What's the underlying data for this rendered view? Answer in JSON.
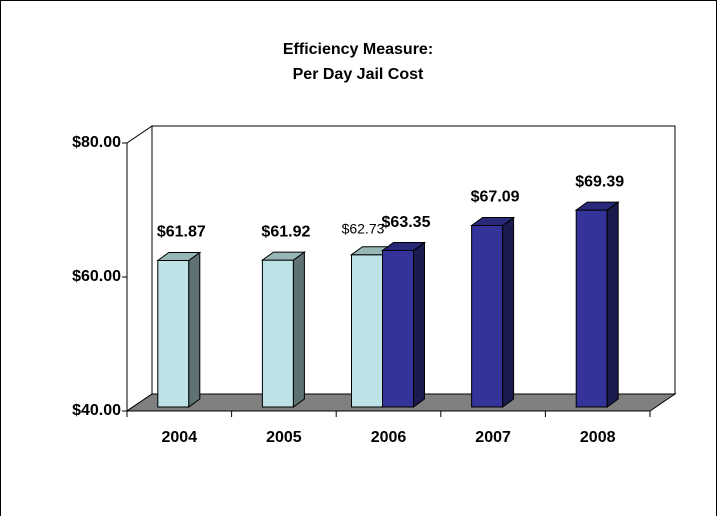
{
  "chart_data": {
    "type": "bar3d",
    "title": "Efficiency Measure:",
    "subtitle": "Per Day Jail Cost",
    "categories": [
      "2004",
      "2005",
      "2006",
      "2007",
      "2008"
    ],
    "series": [
      {
        "color": "#bde3e6",
        "values": [
          61.87,
          61.92,
          62.73,
          null,
          null
        ],
        "value_labels": [
          "$61.87",
          "$61.92",
          "$62.73",
          null,
          null
        ]
      },
      {
        "color": "#333399",
        "values": [
          null,
          null,
          63.35,
          67.09,
          69.39
        ],
        "value_labels": [
          null,
          null,
          "$63.35",
          "$67.09",
          "$69.39"
        ]
      }
    ],
    "ylim": [
      40,
      80
    ],
    "yticks": [
      {
        "value": 40,
        "label": "$40.00"
      },
      {
        "value": 60,
        "label": "$60.00"
      },
      {
        "value": 80,
        "label": "$80.00"
      }
    ]
  }
}
